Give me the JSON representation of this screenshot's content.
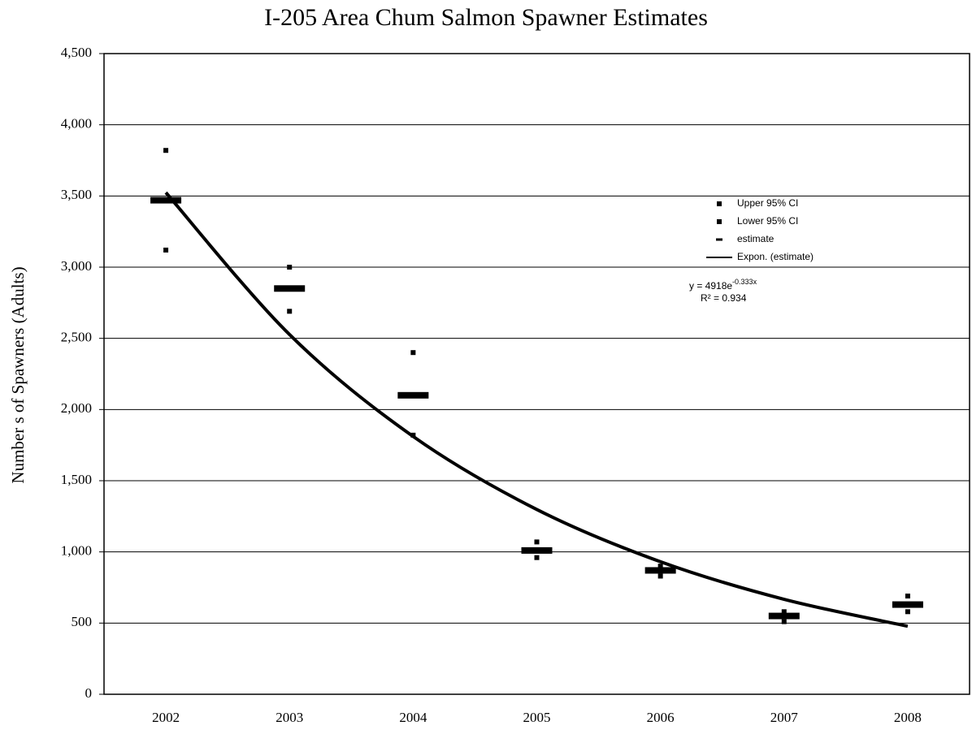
{
  "chart_data": {
    "type": "scatter",
    "title": "I-205 Area Chum Salmon Spawner Estimates",
    "y_label": "Number s of Spawners (Adults)",
    "categories": [
      "2002",
      "2003",
      "2004",
      "2005",
      "2006",
      "2007",
      "2008"
    ],
    "series": [
      {
        "name": "Upper 95% CI",
        "color": "#000000",
        "marker": "square",
        "values": [
          3820,
          3000,
          2400,
          1070,
          900,
          580,
          690
        ]
      },
      {
        "name": "Lower 95% CI",
        "color": "#000000",
        "marker": "square",
        "values": [
          3120,
          2690,
          1820,
          960,
          830,
          510,
          580
        ]
      },
      {
        "name": "estimate",
        "color": "#000000",
        "marker": "dash",
        "values": [
          3470,
          2850,
          2100,
          1010,
          870,
          550,
          630
        ]
      },
      {
        "name": "Expon. (estimate)",
        "color": "#000000",
        "marker": "line",
        "values": [
          3524,
          2527,
          1811,
          1298,
          931,
          667,
          478
        ]
      }
    ],
    "equation": "y = 4918e",
    "equation_exponent": "-0.333x",
    "r_squared": "R² = 0.934",
    "ylim": [
      0,
      4500
    ],
    "yticks": [
      0,
      500,
      {
        "value": 1000,
        "label": "1,000"
      },
      {
        "value": 1500,
        "label": "1,500"
      },
      {
        "value": 2000,
        "label": "2,000"
      },
      {
        "value": 2500,
        "label": "2,500"
      },
      {
        "value": 3000,
        "label": "3,000"
      },
      {
        "value": 3500,
        "label": "3,500"
      },
      {
        "value": 4000,
        "label": "4,000"
      },
      {
        "value": 4500,
        "label": "4,500"
      }
    ],
    "grid": true
  }
}
